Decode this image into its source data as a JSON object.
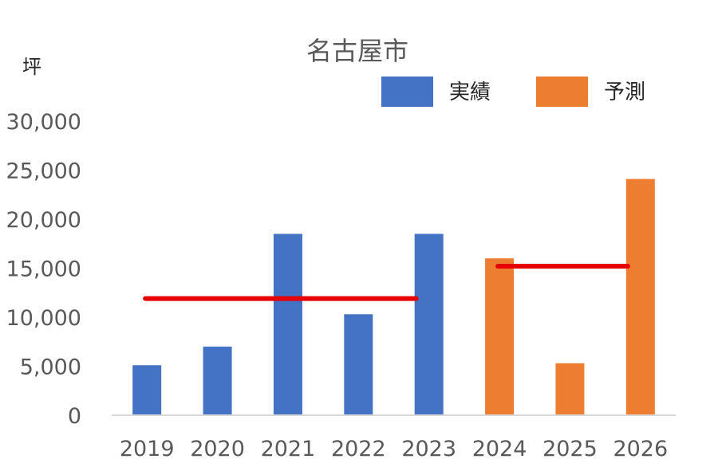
{
  "chart_data": {
    "type": "bar",
    "title": "名古屋市",
    "unit_label": "坪",
    "categories": [
      "2019",
      "2020",
      "2021",
      "2022",
      "2023",
      "2024",
      "2025",
      "2026"
    ],
    "series": [
      {
        "name": "実績",
        "color": "#4472C4",
        "values": [
          5100,
          7000,
          18500,
          10300,
          18500,
          null,
          null,
          null
        ]
      },
      {
        "name": "予測",
        "color": "#ED7D31",
        "values": [
          null,
          null,
          null,
          null,
          null,
          16000,
          5300,
          24100
        ]
      }
    ],
    "average_lines": [
      {
        "color": "#E60000",
        "from": "2019",
        "to": "2023",
        "value": 11900
      },
      {
        "color": "#E60000",
        "from": "2024",
        "to": "2026",
        "value": 15200
      }
    ],
    "y_ticks": [
      "0",
      "5,000",
      "10,000",
      "15,000",
      "20,000",
      "25,000",
      "30,000"
    ],
    "ylim": [
      0,
      30000
    ],
    "legend_position": "top-right",
    "grid": false
  }
}
